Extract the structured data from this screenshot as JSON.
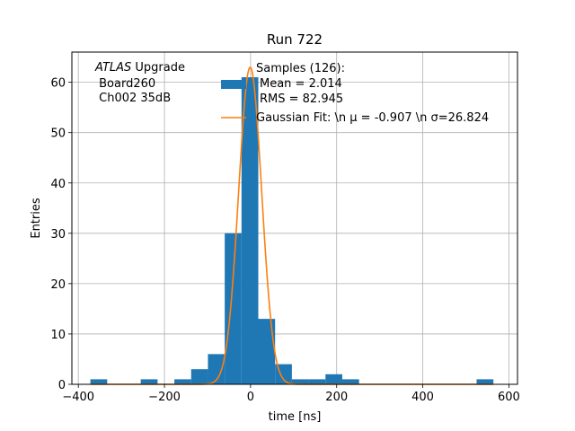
{
  "chart_data": {
    "type": "bar",
    "title": "Run 722",
    "xlabel": "time [ns]",
    "ylabel": "Entries",
    "xlim": [
      -415,
      620
    ],
    "ylim": [
      0,
      66
    ],
    "xticks": [
      -400,
      -200,
      0,
      200,
      400,
      600
    ],
    "xtick_labels": [
      "−400",
      "−200",
      "0",
      "200",
      "400",
      "600"
    ],
    "yticks": [
      0,
      10,
      20,
      30,
      40,
      50,
      60
    ],
    "grid": true,
    "legend_position": "upper-right",
    "colors": {
      "histogram": "#1f77b4",
      "fit": "#ff7f0e"
    },
    "annotation": {
      "italic_part": "ATLAS",
      "line1_rest": " Upgrade",
      "line2": " Board260",
      "line3": " Ch002 35dB"
    },
    "series": [
      {
        "kind": "histogram",
        "legend_lines": [
          "Samples (126):",
          "Mean = 2.014",
          "RMS = 82.945"
        ],
        "bin_width": 39,
        "bins": [
          {
            "x0": -372,
            "count": 1
          },
          {
            "x0": -333,
            "count": 0
          },
          {
            "x0": -294,
            "count": 0
          },
          {
            "x0": -255,
            "count": 1
          },
          {
            "x0": -216,
            "count": 0
          },
          {
            "x0": -177,
            "count": 1
          },
          {
            "x0": -138,
            "count": 3
          },
          {
            "x0": -99,
            "count": 6
          },
          {
            "x0": -60,
            "count": 30
          },
          {
            "x0": -21,
            "count": 61
          },
          {
            "x0": 18,
            "count": 13
          },
          {
            "x0": 57,
            "count": 4
          },
          {
            "x0": 96,
            "count": 1
          },
          {
            "x0": 135,
            "count": 1
          },
          {
            "x0": 174,
            "count": 2
          },
          {
            "x0": 213,
            "count": 1
          },
          {
            "x0": 252,
            "count": 0
          },
          {
            "x0": 291,
            "count": 0
          },
          {
            "x0": 330,
            "count": 0
          },
          {
            "x0": 369,
            "count": 0
          },
          {
            "x0": 408,
            "count": 0
          },
          {
            "x0": 447,
            "count": 0
          },
          {
            "x0": 486,
            "count": 0
          },
          {
            "x0": 525,
            "count": 1
          }
        ]
      },
      {
        "kind": "line",
        "legend_text": "Gaussian Fit: \\n μ = -0.907 \\n σ=26.824",
        "mu": -0.907,
        "sigma": 26.824,
        "amplitude": 63,
        "x_range": [
          -372,
          564
        ]
      }
    ]
  }
}
